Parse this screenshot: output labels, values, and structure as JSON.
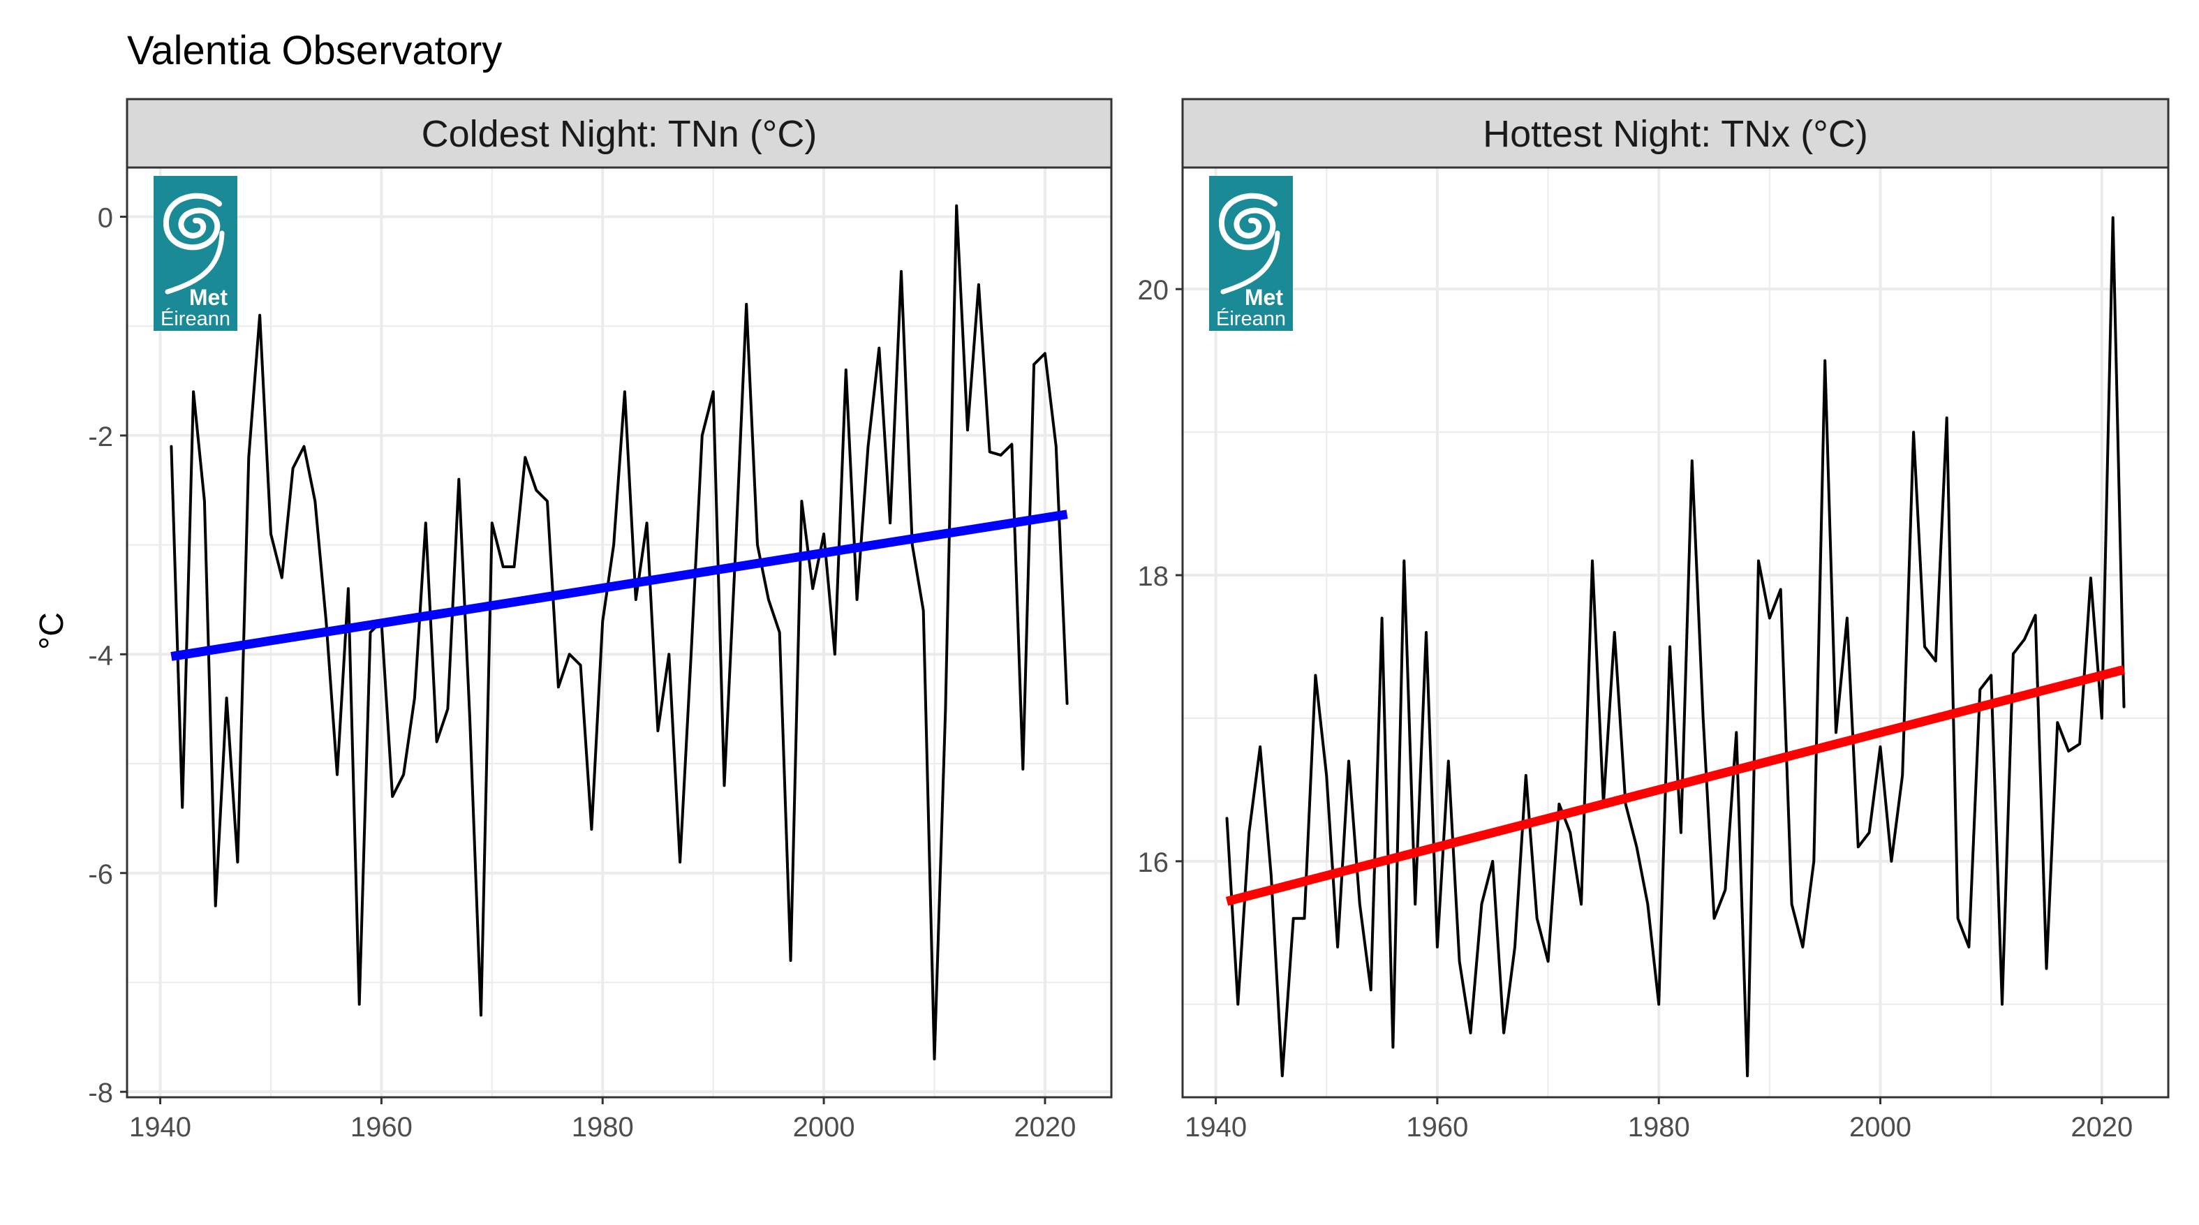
{
  "title": "Valentia Observatory",
  "ylabel": "°C",
  "logo": {
    "line1": "Met",
    "line2": "Éireann",
    "icon": "met-eireann-swirl-logo",
    "color": "#1a8a96"
  },
  "chart_data": [
    {
      "type": "line",
      "title": "Coldest Night: TNn (°C)",
      "xlabel": "",
      "ylabel": "°C",
      "xlim": [
        1937,
        2026
      ],
      "ylim": [
        -8.05,
        0.45
      ],
      "x_ticks": [
        1940,
        1960,
        1980,
        2000,
        2020
      ],
      "y_ticks": [
        -8,
        -6,
        -4,
        -2,
        0
      ],
      "y_tick_labels": [
        "-8",
        "-6",
        "-4",
        "-2",
        "0"
      ],
      "grid": true,
      "series": [
        {
          "x": [
            1941,
            1942,
            1943,
            1944,
            1945,
            1946,
            1947,
            1948,
            1949,
            1950,
            1951,
            1952,
            1953,
            1954,
            1955,
            1956,
            1957,
            1958,
            1959,
            1960,
            1961,
            1962,
            1963,
            1964,
            1965,
            1966,
            1967,
            1968,
            1969,
            1970,
            1971,
            1972,
            1973,
            1974,
            1975,
            1976,
            1977,
            1978,
            1979,
            1980,
            1981,
            1982,
            1983,
            1984,
            1985,
            1986,
            1987,
            1988,
            1989,
            1990,
            1991,
            1992,
            1993,
            1994,
            1995,
            1996,
            1997,
            1998,
            1999,
            2000,
            2001,
            2002,
            2003,
            2004,
            2005,
            2006,
            2007,
            2008,
            2009,
            2010,
            2011,
            2012,
            2013,
            2014,
            2015,
            2016,
            2017,
            2018,
            2019,
            2020,
            2021,
            2022
          ],
          "values": [
            -2.1,
            -5.4,
            -1.6,
            -2.6,
            -6.3,
            -4.4,
            -5.9,
            -2.2,
            -0.9,
            -2.9,
            -3.3,
            -2.3,
            -2.1,
            -2.6,
            -3.7,
            -5.1,
            -3.4,
            -7.2,
            -3.8,
            -3.7,
            -5.3,
            -5.1,
            -4.4,
            -2.8,
            -4.8,
            -4.5,
            -2.4,
            -4.6,
            -7.3,
            -2.8,
            -3.2,
            -3.2,
            -2.2,
            -2.5,
            -2.6,
            -4.3,
            -4.0,
            -4.1,
            -5.6,
            -3.7,
            -3.0,
            -1.6,
            -3.5,
            -2.8,
            -4.7,
            -4.0,
            -5.9,
            -4.0,
            -2.0,
            -1.6,
            -5.2,
            -3.1,
            -0.8,
            -3.0,
            -3.5,
            -3.8,
            -6.8,
            -2.6,
            -3.4,
            -2.9,
            -4.0,
            -1.4,
            -3.5,
            -2.1,
            -1.2,
            -2.8,
            -0.5,
            -3.0,
            -3.6,
            -7.7,
            -4.5,
            0.1,
            -1.95,
            -0.62,
            -2.15,
            -2.18,
            -2.08,
            -5.05,
            -1.35,
            -1.25,
            -2.1,
            -4.45
          ],
          "color": "#000000"
        },
        {
          "name": "trend",
          "x": [
            1941,
            2022
          ],
          "values": [
            -4.02,
            -2.72
          ],
          "color": "#0000ff"
        }
      ]
    },
    {
      "type": "line",
      "title": "Hottest Night: TNx (°C)",
      "xlabel": "",
      "ylabel": "",
      "xlim": [
        1937,
        2026
      ],
      "ylim": [
        14.35,
        20.85
      ],
      "x_ticks": [
        1940,
        1960,
        1980,
        2000,
        2020
      ],
      "y_ticks": [
        16,
        18,
        20
      ],
      "y_tick_labels": [
        "16",
        "18",
        "20"
      ],
      "grid": true,
      "series": [
        {
          "x": [
            1941,
            1942,
            1943,
            1944,
            1945,
            1946,
            1947,
            1948,
            1949,
            1950,
            1951,
            1952,
            1953,
            1954,
            1955,
            1956,
            1957,
            1958,
            1959,
            1960,
            1961,
            1962,
            1963,
            1964,
            1965,
            1966,
            1967,
            1968,
            1969,
            1970,
            1971,
            1972,
            1973,
            1974,
            1975,
            1976,
            1977,
            1978,
            1979,
            1980,
            1981,
            1982,
            1983,
            1984,
            1985,
            1986,
            1987,
            1988,
            1989,
            1990,
            1991,
            1992,
            1993,
            1994,
            1995,
            1996,
            1997,
            1998,
            1999,
            2000,
            2001,
            2002,
            2003,
            2004,
            2005,
            2006,
            2007,
            2008,
            2009,
            2010,
            2011,
            2012,
            2013,
            2014,
            2015,
            2016,
            2017,
            2018,
            2019,
            2020,
            2021,
            2022
          ],
          "values": [
            16.3,
            15.0,
            16.2,
            16.8,
            15.9,
            14.5,
            15.6,
            15.6,
            17.3,
            16.6,
            15.4,
            16.7,
            15.7,
            15.1,
            17.7,
            14.7,
            18.1,
            15.7,
            17.6,
            15.4,
            16.7,
            15.3,
            14.8,
            15.7,
            16.0,
            14.8,
            15.4,
            16.6,
            15.6,
            15.3,
            16.4,
            16.2,
            15.7,
            18.1,
            16.4,
            17.6,
            16.4,
            16.1,
            15.7,
            15.0,
            17.5,
            16.2,
            18.8,
            17.0,
            15.6,
            15.8,
            16.9,
            14.5,
            18.1,
            17.7,
            17.9,
            15.7,
            15.4,
            16.0,
            19.5,
            16.9,
            17.7,
            16.1,
            16.2,
            16.8,
            16.0,
            16.6,
            19.0,
            17.5,
            17.4,
            19.1,
            15.6,
            15.4,
            17.2,
            17.3,
            15.0,
            17.45,
            17.55,
            17.72,
            15.25,
            16.97,
            16.77,
            16.82,
            17.98,
            17.0,
            20.5,
            17.08
          ],
          "color": "#000000"
        },
        {
          "name": "trend",
          "x": [
            1941,
            2022
          ],
          "values": [
            15.72,
            17.34
          ],
          "color": "#ff0000"
        }
      ]
    }
  ]
}
